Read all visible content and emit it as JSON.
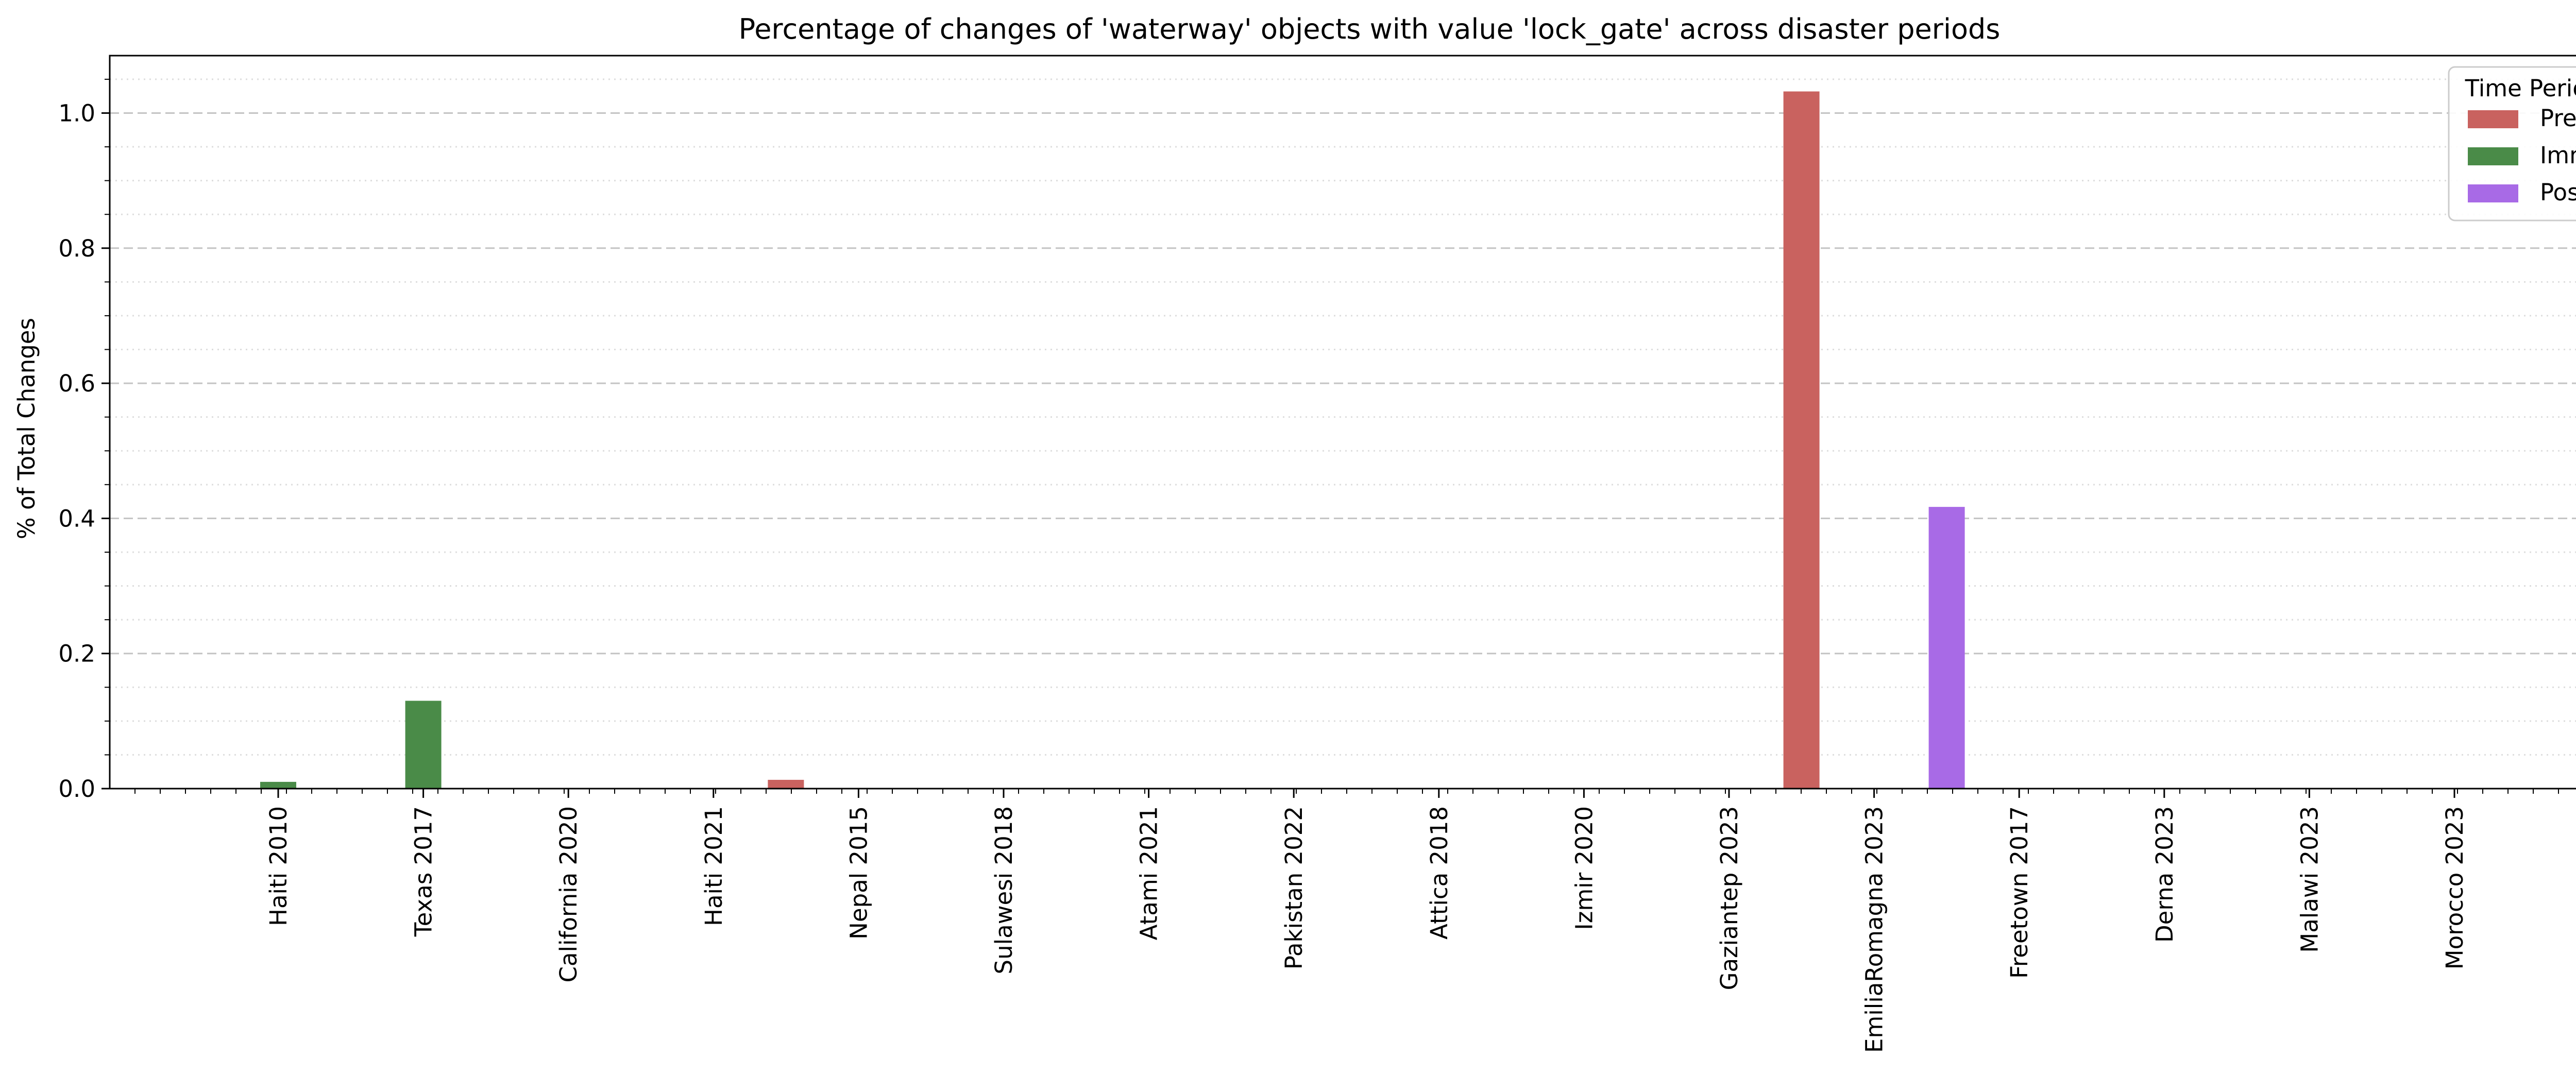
{
  "chart_data": {
    "type": "bar",
    "title": "Percentage of changes of 'waterway' objects with value 'lock_gate' across disaster periods",
    "xlabel": "",
    "ylabel": "% of Total Changes",
    "ylim": [
      0,
      1.085
    ],
    "yticks": [
      "0.0",
      "0.2",
      "0.4",
      "0.6",
      "0.8",
      "1.0"
    ],
    "grid": "horizontal dashed major, dotted minor",
    "legend": {
      "title": "Time Period",
      "placement": "top-right"
    },
    "categories": [
      "Haiti 2010",
      "Texas 2017",
      "California 2020",
      "Haiti 2021",
      "Nepal 2015",
      "Sulawesi 2018",
      "Atami 2021",
      "Pakistan 2022",
      "Attica 2018",
      "Izmir 2020",
      "Gaziantep 2023",
      "EmiliaRomagna 2023",
      "Freetown 2017",
      "Derna 2023",
      "Malawi 2023",
      "Morocco 2023"
    ],
    "series": [
      {
        "name": "Pre",
        "color": "#c9625f",
        "values": [
          0,
          0,
          0,
          0,
          0.013,
          0,
          0,
          0,
          0,
          0,
          0,
          1.032,
          0,
          0,
          0,
          0
        ]
      },
      {
        "name": "Imm",
        "color": "#4a8b48",
        "values": [
          0.01,
          0.13,
          0,
          0,
          0,
          0,
          0,
          0,
          0,
          0,
          0,
          0,
          0,
          0,
          0,
          0
        ]
      },
      {
        "name": "Post",
        "color": "#a86ae6",
        "values": [
          0,
          0,
          0,
          0,
          0,
          0,
          0,
          0,
          0,
          0,
          0,
          0.417,
          0,
          0,
          0,
          0
        ]
      }
    ]
  }
}
